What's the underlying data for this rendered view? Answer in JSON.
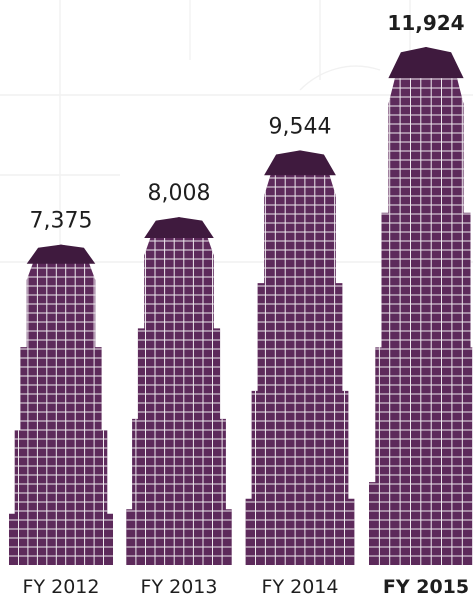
{
  "chart_data": {
    "type": "bar",
    "categories": [
      "FY 2012",
      "FY 2013",
      "FY 2014",
      "FY 2015"
    ],
    "values": [
      7375,
      8008,
      9544,
      11924
    ],
    "value_labels": [
      "7,375",
      "8,008",
      "9,544",
      "11,924"
    ],
    "highlight_index": 3,
    "bar_style": "skyscraper",
    "colors": {
      "bar": "#5d2a5b",
      "window_lines": "#ffffff",
      "label_text": "#1e1e1e",
      "background_grid": "#f1f1f1"
    },
    "title": "",
    "xlabel": "",
    "ylabel": "",
    "grid": false,
    "legend": "none"
  }
}
